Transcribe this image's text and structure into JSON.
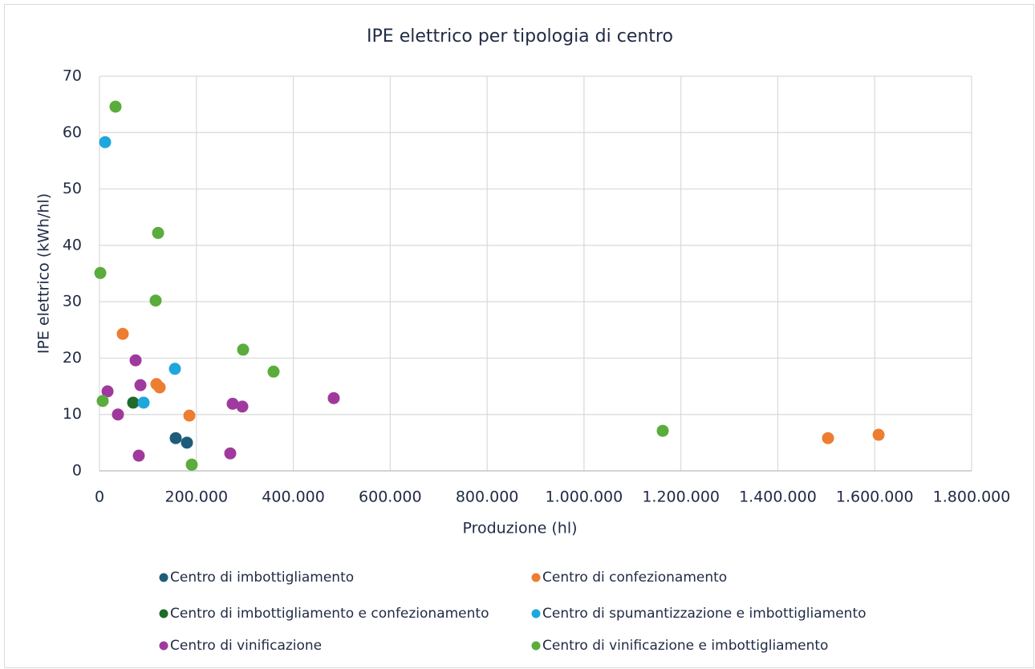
{
  "chart_data": {
    "type": "scatter",
    "title": "IPE elettrico per tipologia di centro",
    "x_label": "Produzione (hl)",
    "y_label": "IPE elettrico (kWh/hl)",
    "xlim": [
      0,
      1800000
    ],
    "xticks": [
      0,
      {
        "value": 200000,
        "label": "200.000"
      },
      {
        "value": 400000,
        "label": "400.000"
      },
      {
        "value": 600000,
        "label": "600.000"
      },
      {
        "value": 800000,
        "label": "800.000"
      },
      {
        "value": 1000000,
        "label": "1.000.000"
      },
      {
        "value": 1200000,
        "label": "1.200.000"
      },
      {
        "value": 1400000,
        "label": "1.400.000"
      },
      {
        "value": 1600000,
        "label": "1.600.000"
      },
      {
        "value": 1800000,
        "label": "1.800.000"
      }
    ],
    "ylim": [
      0,
      70
    ],
    "yticks": [
      0,
      10,
      20,
      30,
      40,
      50,
      60,
      70
    ],
    "grid": true,
    "legend": "bottom",
    "series": [
      {
        "name": "Centro di imbottigliamento",
        "color": "#1f5c7a",
        "x": [
          157300,
          180500
        ],
        "values": [
          5.8,
          5.0
        ]
      },
      {
        "name": "Centro di confezionamento",
        "color": "#ed7d31",
        "x": [
          48000,
          117600,
          124200,
          185500,
          1503600,
          1608000
        ],
        "values": [
          24.3,
          15.4,
          14.8,
          9.8,
          5.8,
          6.4
        ]
      },
      {
        "name": "Centro di imbottigliamento e confezionamento",
        "color": "#1e6b2a",
        "x": [
          69500
        ],
        "values": [
          12.1
        ]
      },
      {
        "name": "Centro di spumantizzazione e imbottigliamento",
        "color": "#1ea7dc",
        "x": [
          11600,
          155700,
          91100
        ],
        "values": [
          58.3,
          18.1,
          12.1
        ]
      },
      {
        "name": "Centro di vinificazione",
        "color": "#a0399e",
        "x": [
          74500,
          16600,
          84500,
          38100,
          81100,
          274900,
          294800,
          483500,
          269900
        ],
        "values": [
          19.6,
          14.1,
          15.2,
          10.0,
          2.7,
          11.9,
          11.4,
          12.9,
          3.1
        ]
      },
      {
        "name": "Centro di vinificazione e imbottigliamento",
        "color": "#5aac3c",
        "x": [
          33100,
          120900,
          1700,
          115900,
          6600,
          296400,
          359300,
          190400,
          1162500
        ],
        "values": [
          64.6,
          42.2,
          35.1,
          30.2,
          12.4,
          21.5,
          17.6,
          1.1,
          7.1
        ]
      }
    ]
  }
}
